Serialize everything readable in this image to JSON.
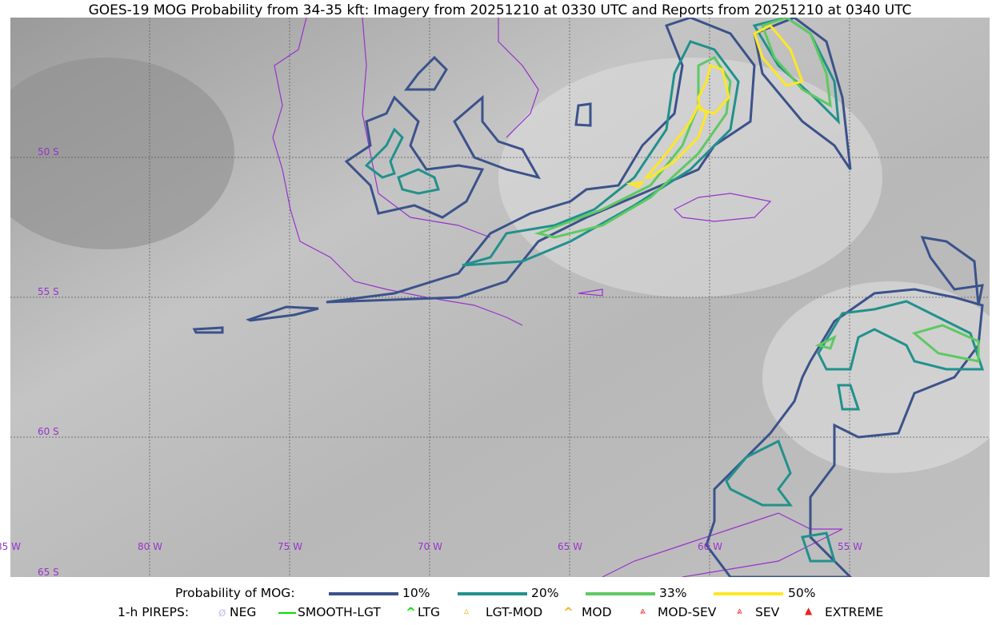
{
  "title": "GOES-19 MOG Probability from 34-35 kft: Imagery from 20251210 at 0330 UTC and Reports from 20251210 at 0340 UTC",
  "map": {
    "lon_labels": [
      "85 W",
      "80 W",
      "75 W",
      "70 W",
      "65 W",
      "60 W",
      "55 W"
    ],
    "lat_labels": [
      "50 S",
      "55 S",
      "60 S",
      "65 S"
    ],
    "grid_color": "#9932cc",
    "coast_color": "#9932cc"
  },
  "legend": {
    "prob_label": "Probability of MOG:",
    "prob_levels": [
      {
        "label": "10%",
        "color": "#3b528b"
      },
      {
        "label": "20%",
        "color": "#21918c"
      },
      {
        "label": "33%",
        "color": "#5ec962"
      },
      {
        "label": "50%",
        "color": "#fde725"
      }
    ],
    "pirep_label": "1-h PIREPS:",
    "pireps": [
      {
        "label": "NEG",
        "color": "#c8c8f0",
        "icon": "neg-circle-icon"
      },
      {
        "label": "SMOOTH-LGT",
        "color": "#00e000",
        "icon": "line-icon"
      },
      {
        "label": "LTG",
        "color": "#00e000",
        "icon": "caret-icon"
      },
      {
        "label": "LGT-MOD",
        "color": "#f5b020",
        "icon": "caret-bar-icon"
      },
      {
        "label": "MOD",
        "color": "#f5b020",
        "icon": "caret-icon"
      },
      {
        "label": "MOD-SEV",
        "color": "#ee2020",
        "icon": "double-caret-bar-icon"
      },
      {
        "label": "SEV",
        "color": "#ee2020",
        "icon": "double-caret-icon"
      },
      {
        "label": "EXTREME",
        "color": "#ee2020",
        "icon": "filled-triangle-icon"
      }
    ]
  }
}
